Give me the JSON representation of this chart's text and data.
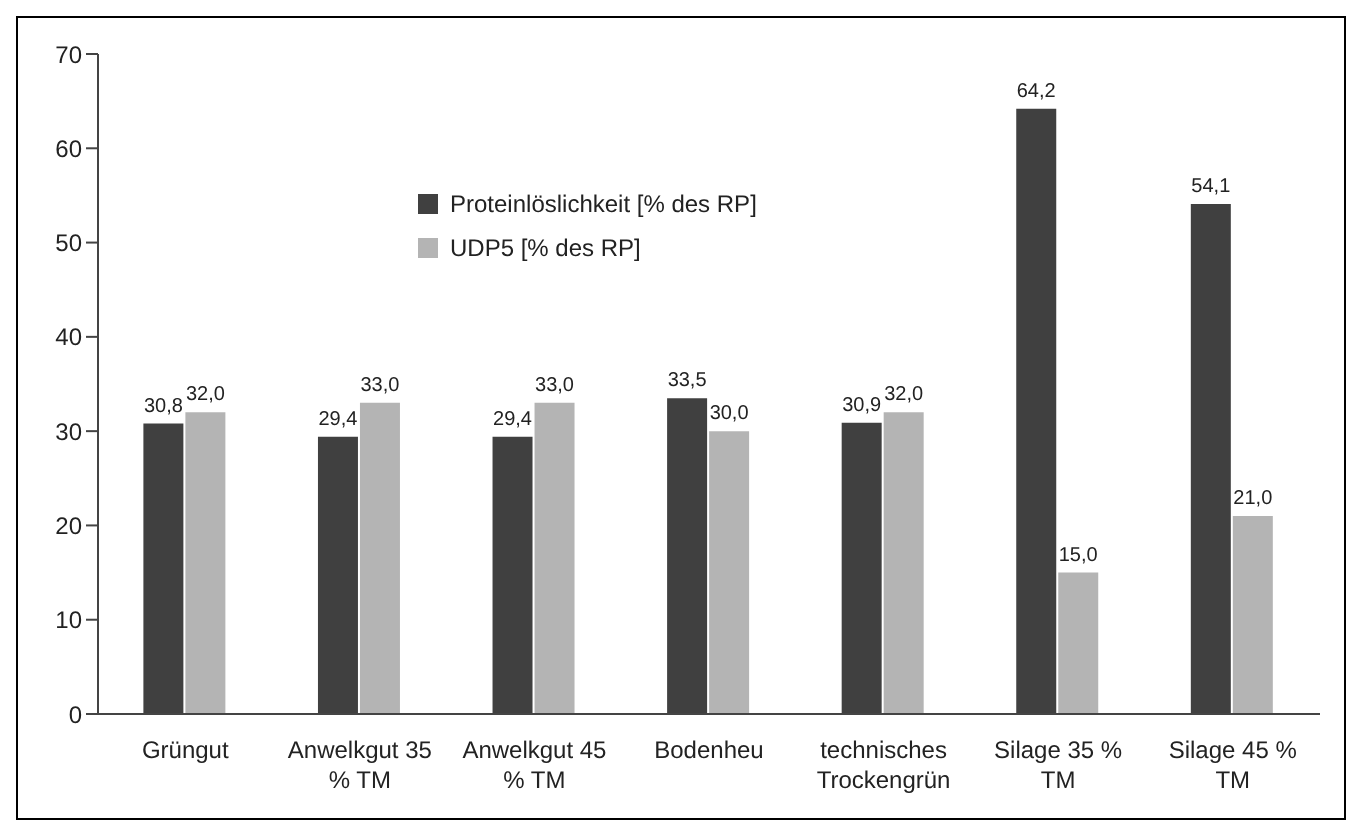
{
  "chart_data": {
    "type": "bar",
    "categories": [
      "Grüngut",
      "Anwelkgut 35 % TM",
      "Anwelkgut 45 % TM",
      "Bodenheu",
      "technisches Trockengrün",
      "Silage 35 % TM",
      "Silage 45 % TM"
    ],
    "series": [
      {
        "name": "Proteinlöslichkeit [% des RP]",
        "color": "#404040",
        "values": [
          30.8,
          29.4,
          29.4,
          33.5,
          30.9,
          64.2,
          54.1
        ],
        "value_labels": [
          "30,8",
          "29,4",
          "29,4",
          "33,5",
          "30,9",
          "64,2",
          "54,1"
        ]
      },
      {
        "name": "UDP5  [% des RP]",
        "color": "#b4b4b4",
        "values": [
          32.0,
          33.0,
          33.0,
          30.0,
          32.0,
          15.0,
          21.0
        ],
        "value_labels": [
          "32,0",
          "33,0",
          "33,0",
          "30,0",
          "32,0",
          "15,0",
          "21,0"
        ]
      }
    ],
    "ylim": [
      0,
      70
    ],
    "yticks": [
      0,
      10,
      20,
      30,
      40,
      50,
      60,
      70
    ],
    "grid": false,
    "legend": "top left"
  }
}
